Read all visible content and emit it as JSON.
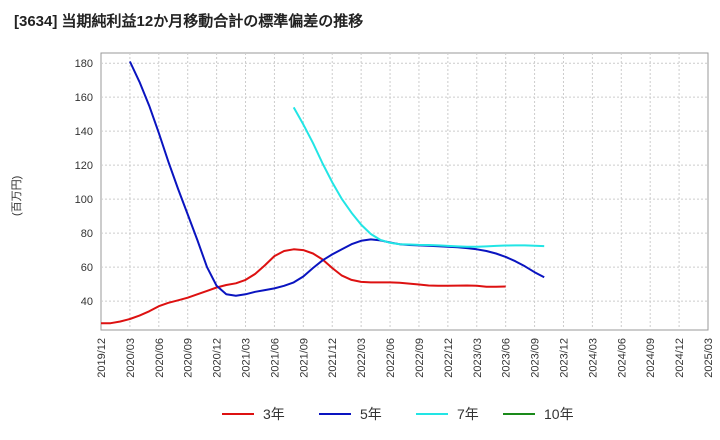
{
  "chart_data": {
    "type": "line",
    "title": "[3634]  当期純利益12か月移動合計の標準偏差の推移",
    "ylabel": "(百万円)",
    "xlabel": "",
    "ylim": [
      23,
      186
    ],
    "yticks": [
      40,
      60,
      80,
      100,
      120,
      140,
      160,
      180
    ],
    "grid": true,
    "legend_position": "bottom",
    "x_tick_labels": [
      "2019/12",
      "2020/03",
      "2020/06",
      "2020/09",
      "2020/12",
      "2021/03",
      "2021/06",
      "2021/09",
      "2021/12",
      "2022/03",
      "2022/06",
      "2022/09",
      "2022/12",
      "2023/03",
      "2023/06",
      "2023/09",
      "2023/12",
      "2024/03",
      "2024/06",
      "2024/09",
      "2024/12",
      "2025/03"
    ],
    "series": [
      {
        "name": "3年",
        "color": "#dd1111",
        "points": [
          [
            0,
            27
          ],
          [
            1,
            27
          ],
          [
            2,
            28
          ],
          [
            3,
            29.5
          ],
          [
            4,
            31.5
          ],
          [
            5,
            34
          ],
          [
            6,
            37
          ],
          [
            7,
            39
          ],
          [
            8,
            40.5
          ],
          [
            9,
            42
          ],
          [
            10,
            44
          ],
          [
            11,
            46
          ],
          [
            12,
            48
          ],
          [
            13,
            49.5
          ],
          [
            14,
            50.5
          ],
          [
            15,
            52.5
          ],
          [
            16,
            56
          ],
          [
            17,
            61
          ],
          [
            18,
            66.5
          ],
          [
            19,
            69.5
          ],
          [
            20,
            70.5
          ],
          [
            21,
            70
          ],
          [
            22,
            68
          ],
          [
            23,
            64.5
          ],
          [
            24,
            59.5
          ],
          [
            25,
            55
          ],
          [
            26,
            52.5
          ],
          [
            27,
            51.3
          ],
          [
            28,
            51
          ],
          [
            29,
            51
          ],
          [
            30,
            51
          ],
          [
            31,
            50.8
          ],
          [
            32,
            50.3
          ],
          [
            33,
            49.8
          ],
          [
            34,
            49.2
          ],
          [
            35,
            49
          ],
          [
            36,
            49
          ],
          [
            37,
            49.1
          ],
          [
            38,
            49.2
          ],
          [
            39,
            49
          ],
          [
            40,
            48.5
          ],
          [
            41,
            48.4
          ],
          [
            42,
            48.6
          ]
        ]
      },
      {
        "name": "5年",
        "color": "#0a14c0",
        "points": [
          [
            3,
            181
          ],
          [
            4,
            169
          ],
          [
            5,
            155
          ],
          [
            6,
            139
          ],
          [
            7,
            122
          ],
          [
            8,
            106
          ],
          [
            9,
            91
          ],
          [
            10,
            76
          ],
          [
            11,
            60
          ],
          [
            12,
            49
          ],
          [
            13,
            44
          ],
          [
            14,
            43.2
          ],
          [
            15,
            44
          ],
          [
            16,
            45.5
          ],
          [
            17,
            46.5
          ],
          [
            18,
            47.5
          ],
          [
            19,
            49
          ],
          [
            20,
            51
          ],
          [
            21,
            54.5
          ],
          [
            22,
            59.5
          ],
          [
            23,
            64
          ],
          [
            24,
            67.5
          ],
          [
            25,
            70.5
          ],
          [
            26,
            73.5
          ],
          [
            27,
            75.5
          ],
          [
            28,
            76.3
          ],
          [
            29,
            75.7
          ],
          [
            30,
            74.5
          ],
          [
            31,
            73.5
          ],
          [
            32,
            73
          ],
          [
            33,
            72.8
          ],
          [
            34,
            72.6
          ],
          [
            35,
            72.3
          ],
          [
            36,
            72
          ],
          [
            37,
            71.7
          ],
          [
            38,
            71.2
          ],
          [
            39,
            70.5
          ],
          [
            40,
            69.5
          ],
          [
            41,
            68
          ],
          [
            42,
            66
          ],
          [
            43,
            63.5
          ],
          [
            44,
            60.5
          ],
          [
            45,
            57
          ],
          [
            46,
            54
          ]
        ]
      },
      {
        "name": "7年",
        "color": "#22e5e5",
        "points": [
          [
            20,
            154
          ],
          [
            21,
            144
          ],
          [
            22,
            133
          ],
          [
            23,
            121
          ],
          [
            24,
            110
          ],
          [
            25,
            100
          ],
          [
            26,
            92
          ],
          [
            27,
            85
          ],
          [
            28,
            79.5
          ],
          [
            29,
            76
          ],
          [
            30,
            74.3
          ],
          [
            31,
            73.5
          ],
          [
            32,
            73.3
          ],
          [
            33,
            73.1
          ],
          [
            34,
            73
          ],
          [
            35,
            72.8
          ],
          [
            36,
            72.5
          ],
          [
            37,
            72.2
          ],
          [
            38,
            72
          ],
          [
            39,
            72
          ],
          [
            40,
            72.2
          ],
          [
            41,
            72.5
          ],
          [
            42,
            72.7
          ],
          [
            43,
            72.8
          ],
          [
            44,
            72.8
          ],
          [
            45,
            72.6
          ],
          [
            46,
            72.4
          ]
        ]
      },
      {
        "name": "10年",
        "color": "#1a8a1a",
        "points": []
      }
    ]
  }
}
